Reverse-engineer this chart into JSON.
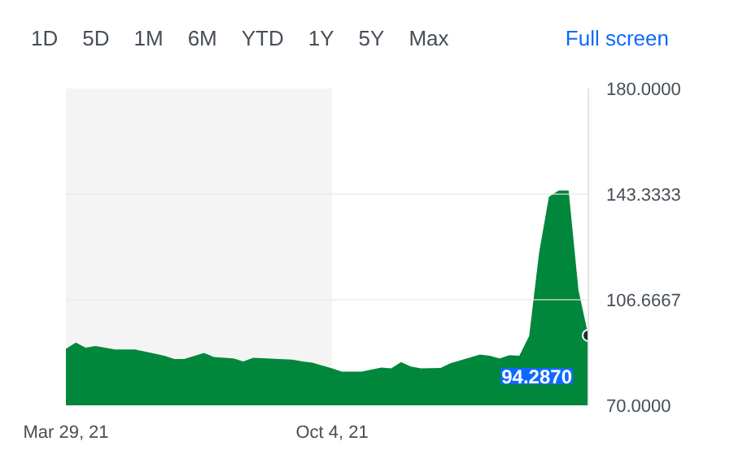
{
  "chart_data": {
    "type": "area",
    "annotations": [
      "1D",
      "5D",
      "1M",
      "6M",
      "YTD",
      "1Y",
      "5Y",
      "Max",
      "Full screen",
      {
        "text": "94.2870",
        "x": "2022-04-04",
        "y": 94.287
      }
    ],
    "x": [
      "2021-03-29",
      "2021-04-05",
      "2021-04-12",
      "2021-04-19",
      "2021-05-03",
      "2021-05-17",
      "2021-05-24",
      "2021-06-07",
      "2021-06-14",
      "2021-06-21",
      "2021-07-05",
      "2021-07-12",
      "2021-07-26",
      "2021-08-02",
      "2021-08-09",
      "2021-09-06",
      "2021-09-13",
      "2021-09-20",
      "2021-10-04",
      "2021-10-11",
      "2021-10-25",
      "2021-11-08",
      "2021-11-15",
      "2021-11-22",
      "2021-11-29",
      "2021-12-06",
      "2021-12-20",
      "2021-12-27",
      "2022-01-17",
      "2022-01-24",
      "2022-01-31",
      "2022-02-07",
      "2022-02-14",
      "2022-02-21",
      "2022-02-28",
      "2022-03-07",
      "2022-03-14",
      "2022-03-21",
      "2022-03-28",
      "2022-04-04"
    ],
    "series": [
      {
        "color": "#00873c",
        "values": [
          89.6,
          91.8,
          90.0,
          90.6,
          89.4,
          89.4,
          88.7,
          87.2,
          86.1,
          86.1,
          88.2,
          86.8,
          86.3,
          85.2,
          86.5,
          85.9,
          85.2,
          84.8,
          82.8,
          81.7,
          81.7,
          83.1,
          82.8,
          85.0,
          83.5,
          82.8,
          83.0,
          84.6,
          87.6,
          87.2,
          86.3,
          87.4,
          87.2,
          94.1,
          122.9,
          142.4,
          144.6,
          144.6,
          110.0,
          94.287
        ]
      }
    ],
    "xlim": [
      "2021-03-29",
      "2022-04-04"
    ],
    "xticks": [
      {
        "value": "2021-03-29",
        "label": "Mar 29, 21"
      },
      {
        "value": "2021-10-04",
        "label": "Oct 4, 21"
      }
    ],
    "ylim": [
      70,
      180
    ],
    "yticks": [
      {
        "value": 70,
        "label": "70.0000"
      },
      {
        "value": 106.6667,
        "label": "106.6667"
      },
      {
        "value": 143.3333,
        "label": "143.3333"
      },
      {
        "value": 180,
        "label": "180.0000"
      }
    ],
    "bands": [
      {
        "axis": "x",
        "from": "2021-03-29",
        "to": "2021-10-04",
        "color": "#f4f4f4"
      }
    ],
    "grid": "y"
  }
}
